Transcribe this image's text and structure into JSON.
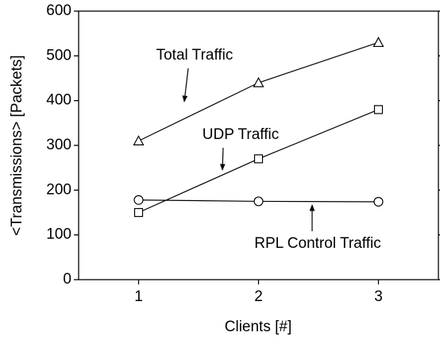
{
  "chart_data": {
    "type": "line",
    "xlabel": "Clients [#]",
    "ylabel": "<Transmissions> [Packets]",
    "x": [
      1,
      2,
      3
    ],
    "series": [
      {
        "name": "Total Traffic",
        "color": "#000000",
        "marker": "triangle",
        "values": [
          310,
          440,
          530
        ]
      },
      {
        "name": "UDP Traffic",
        "color": "#000000",
        "marker": "square",
        "values": [
          150,
          270,
          380
        ]
      },
      {
        "name": "RPL Control Traffic",
        "color": "#000000",
        "marker": "circle",
        "values": [
          178,
          175,
          174
        ]
      }
    ],
    "xlim": [
      0.5,
      3.5
    ],
    "xticks": [
      1,
      2,
      3
    ],
    "ylim": [
      0,
      600
    ],
    "yticks": [
      0,
      100,
      200,
      300,
      400,
      500,
      600
    ]
  }
}
